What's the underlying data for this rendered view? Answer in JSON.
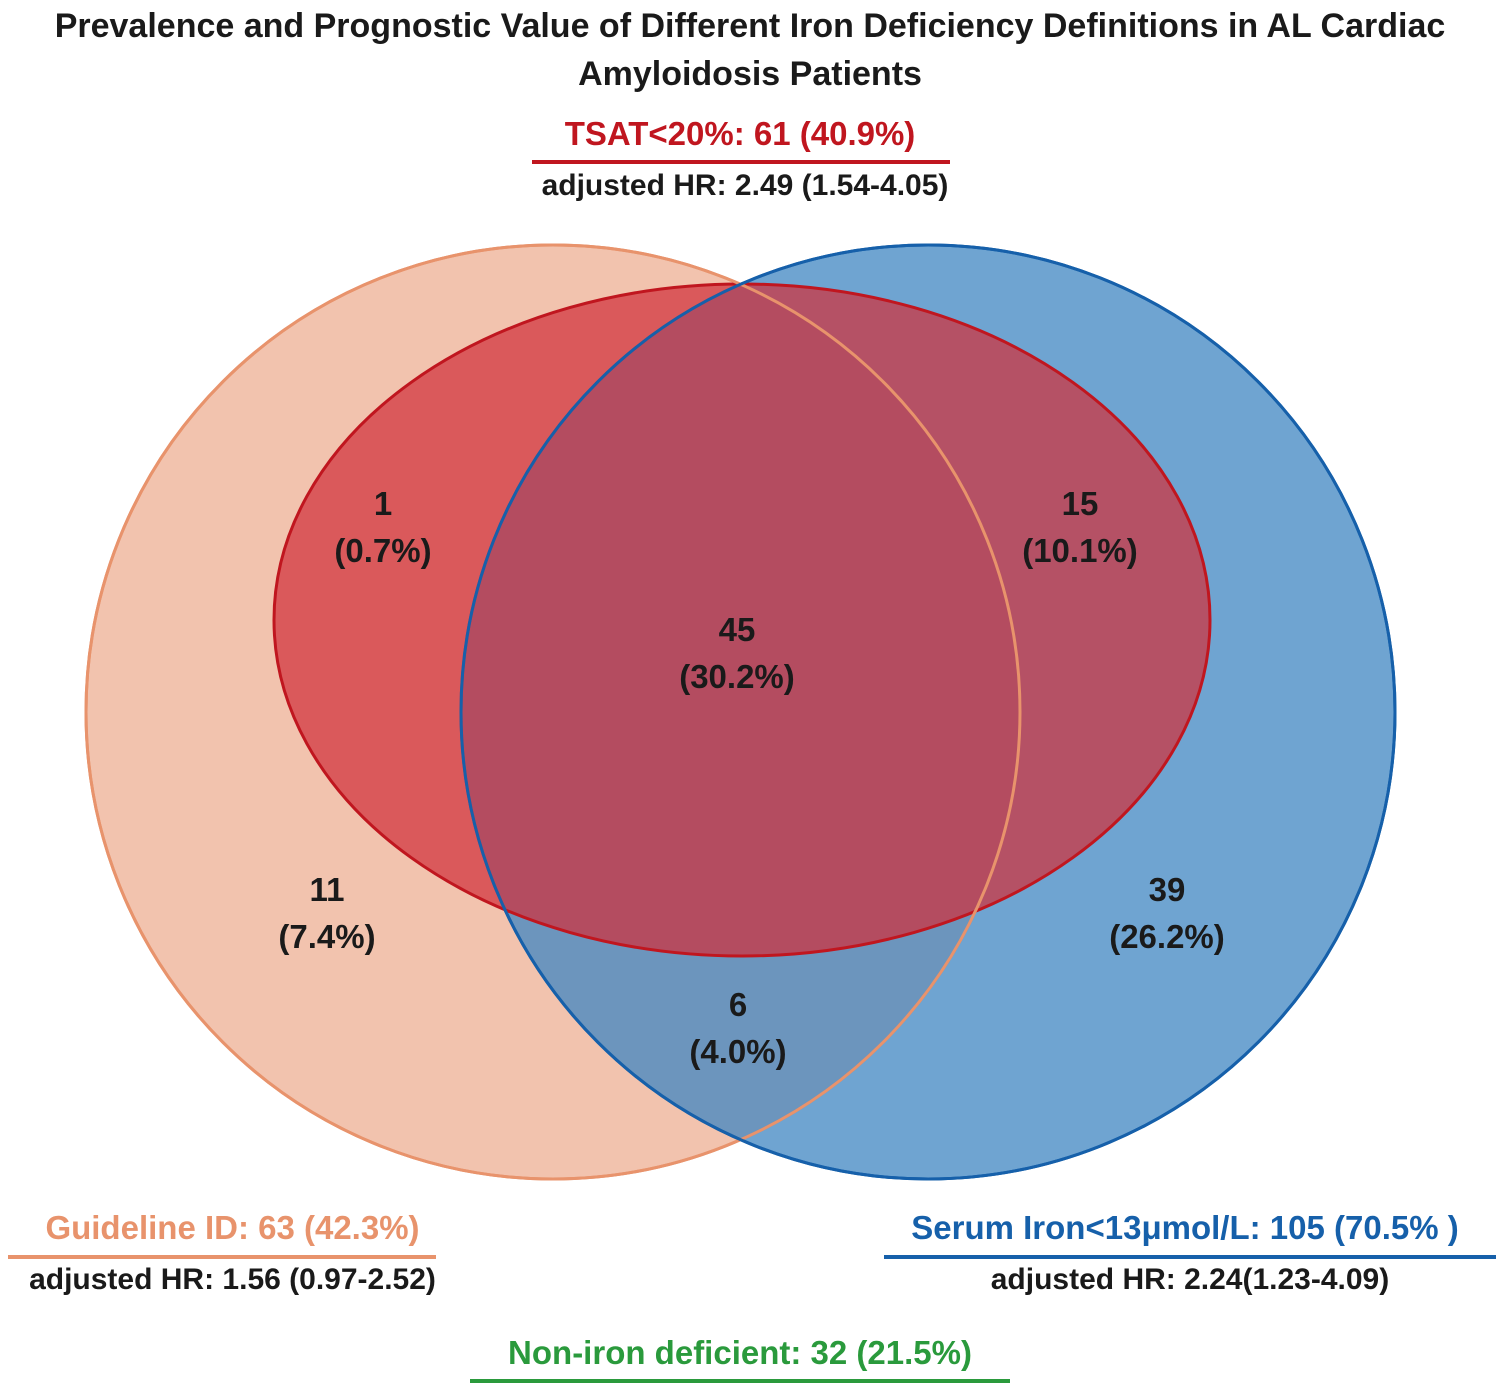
{
  "chart_data": {
    "type": "venn",
    "title": "Prevalence and Prognostic Value of Different Iron Deficiency Definitions in AL Cardiac Amyloidosis Patients",
    "sets": [
      {
        "id": "tsat",
        "name": "TSAT<20%: 61 (40.9%)",
        "hr": "adjusted HR: 2.49 (1.54-4.05)",
        "count": 61,
        "percent": 40.9,
        "color": "#c0161f",
        "fill": "#d0303c"
      },
      {
        "id": "guideline",
        "name": "Guideline ID: 63 (42.3%)",
        "hr": "adjusted HR: 1.56 (0.97-2.52)",
        "count": 63,
        "percent": 42.3,
        "color": "#e8936c",
        "fill": "#f0b8a0"
      },
      {
        "id": "iron",
        "name": "Serum Iron<13μmol/L: 105 (70.5% )",
        "hr": "adjusted HR: 2.24(1.23-4.09)",
        "count": 105,
        "percent": 70.5,
        "color": "#1660aa",
        "fill": "#3f86c2"
      }
    ],
    "regions": [
      {
        "sets": [
          "tsat",
          "guideline"
        ],
        "count": "1",
        "percent": "(0.7%)"
      },
      {
        "sets": [
          "tsat",
          "iron"
        ],
        "count": "15",
        "percent": "(10.1%)"
      },
      {
        "sets": [
          "tsat",
          "guideline",
          "iron"
        ],
        "count": "45",
        "percent": "(30.2%)"
      },
      {
        "sets": [
          "guideline"
        ],
        "count": "11",
        "percent": "(7.4%)"
      },
      {
        "sets": [
          "iron"
        ],
        "count": "39",
        "percent": "(26.2%)"
      },
      {
        "sets": [
          "guideline",
          "iron"
        ],
        "count": "6",
        "percent": "(4.0%)"
      }
    ],
    "non_iron_deficient": {
      "label": "Non-iron deficient: 32 (21.5%)",
      "count": 32,
      "percent": 21.5,
      "color": "#2a9a3c"
    }
  }
}
